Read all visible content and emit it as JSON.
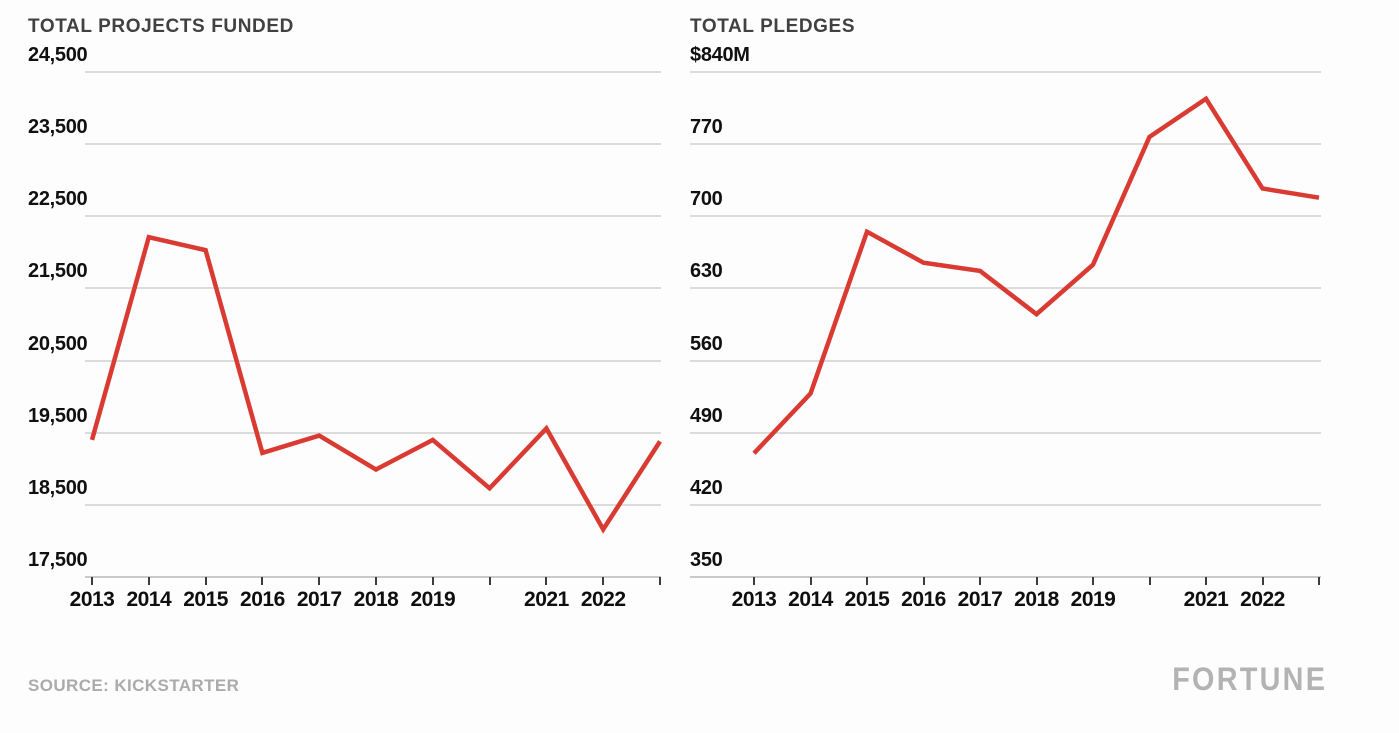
{
  "page": {
    "background": "#fdfdfd",
    "accent_red": "#d93a32",
    "gridline_color": "#dcdcdc",
    "tick_color": "#3c3c3c",
    "title_color": "#414141",
    "label_color": "#0f0f0f",
    "muted_gray": "#ababab"
  },
  "source": {
    "label": "SOURCE: KICKSTARTER"
  },
  "brand": {
    "label": "FORTUNE"
  },
  "chart_data": [
    {
      "type": "line",
      "title": "TOTAL PROJECTS FUNDED",
      "x": [
        2013,
        2014,
        2015,
        2016,
        2017,
        2018,
        2019,
        2020,
        2021,
        2022,
        2023
      ],
      "x_tick_labels": [
        "2013",
        "2014",
        "2015",
        "2016",
        "2017",
        "2018",
        "2019",
        "",
        "2021",
        "2022",
        ""
      ],
      "values": [
        19400,
        22210,
        22030,
        19220,
        19460,
        18990,
        19400,
        18730,
        19560,
        18160,
        19380
      ],
      "y_ticks": [
        24500,
        23500,
        22500,
        21500,
        20500,
        19500,
        18500,
        17500
      ],
      "y_tick_labels": [
        "24,500",
        "23,500",
        "22,500",
        "21,500",
        "20,500",
        "19,500",
        "18,500",
        "17,500"
      ],
      "ylim": [
        17500,
        24500
      ],
      "xlabel": "",
      "ylabel": "",
      "grid": true,
      "legend": "none",
      "line_color": "#d93a32"
    },
    {
      "type": "line",
      "title": "TOTAL PLEDGES",
      "x": [
        2013,
        2014,
        2015,
        2016,
        2017,
        2018,
        2019,
        2020,
        2021,
        2022,
        2023
      ],
      "x_tick_labels": [
        "2013",
        "2014",
        "2015",
        "2016",
        "2017",
        "2018",
        "2019",
        "",
        "2021",
        "2022",
        ""
      ],
      "values": [
        470,
        528,
        685,
        655,
        647,
        605,
        653,
        777,
        814,
        727,
        718
      ],
      "values_unit": "USD millions",
      "y_ticks": [
        840,
        770,
        700,
        630,
        560,
        490,
        420,
        350
      ],
      "y_tick_labels": [
        "$840M",
        "770",
        "700",
        "630",
        "560",
        "490",
        "420",
        "350"
      ],
      "ylim": [
        350,
        840
      ],
      "xlabel": "",
      "ylabel": "",
      "grid": true,
      "legend": "none",
      "line_color": "#d93a32"
    }
  ]
}
